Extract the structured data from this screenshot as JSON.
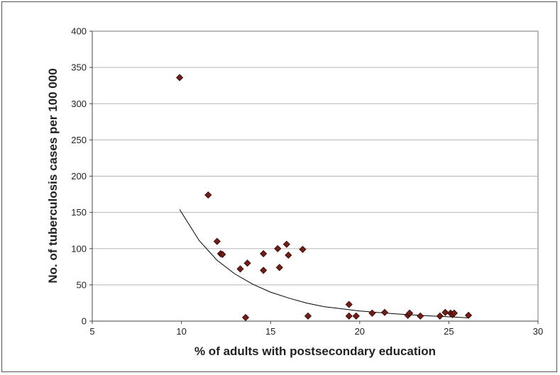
{
  "chart_data": {
    "type": "scatter",
    "xlabel": "% of adults with postsecondary education",
    "ylabel": "No. of tuberculosis cases per 100 000",
    "xlim": [
      5,
      30
    ],
    "ylim": [
      0,
      400
    ],
    "x_ticks": [
      5,
      10,
      15,
      20,
      25,
      30
    ],
    "y_ticks": [
      0,
      50,
      100,
      150,
      200,
      250,
      300,
      350,
      400
    ],
    "grid": "horizontal",
    "marker_color": "#7a1a12",
    "trendline_color": "#000000",
    "points": [
      {
        "x": 9.9,
        "y": 336
      },
      {
        "x": 11.5,
        "y": 174
      },
      {
        "x": 12.0,
        "y": 110
      },
      {
        "x": 12.2,
        "y": 93
      },
      {
        "x": 12.3,
        "y": 92
      },
      {
        "x": 13.3,
        "y": 72
      },
      {
        "x": 13.7,
        "y": 80
      },
      {
        "x": 13.6,
        "y": 5
      },
      {
        "x": 14.6,
        "y": 93
      },
      {
        "x": 14.6,
        "y": 70
      },
      {
        "x": 15.4,
        "y": 100
      },
      {
        "x": 15.5,
        "y": 74
      },
      {
        "x": 15.9,
        "y": 106
      },
      {
        "x": 16.0,
        "y": 91
      },
      {
        "x": 16.8,
        "y": 99
      },
      {
        "x": 17.1,
        "y": 7
      },
      {
        "x": 19.4,
        "y": 23
      },
      {
        "x": 19.4,
        "y": 7
      },
      {
        "x": 19.8,
        "y": 7
      },
      {
        "x": 20.7,
        "y": 11
      },
      {
        "x": 21.4,
        "y": 12
      },
      {
        "x": 22.7,
        "y": 8
      },
      {
        "x": 22.8,
        "y": 11
      },
      {
        "x": 23.4,
        "y": 7
      },
      {
        "x": 24.5,
        "y": 7
      },
      {
        "x": 24.8,
        "y": 12
      },
      {
        "x": 25.1,
        "y": 11
      },
      {
        "x": 25.2,
        "y": 9
      },
      {
        "x": 25.3,
        "y": 11
      },
      {
        "x": 26.1,
        "y": 8
      }
    ],
    "trendline": {
      "type": "exponential",
      "x": [
        9.9,
        11,
        12,
        13,
        14,
        15,
        16,
        17,
        18,
        19,
        20,
        21,
        22,
        23,
        24,
        25,
        26.1
      ],
      "y": [
        154,
        111,
        84,
        65,
        51,
        40,
        32,
        25,
        20,
        17,
        14,
        12,
        10,
        8.5,
        7,
        6,
        4.5
      ]
    }
  }
}
